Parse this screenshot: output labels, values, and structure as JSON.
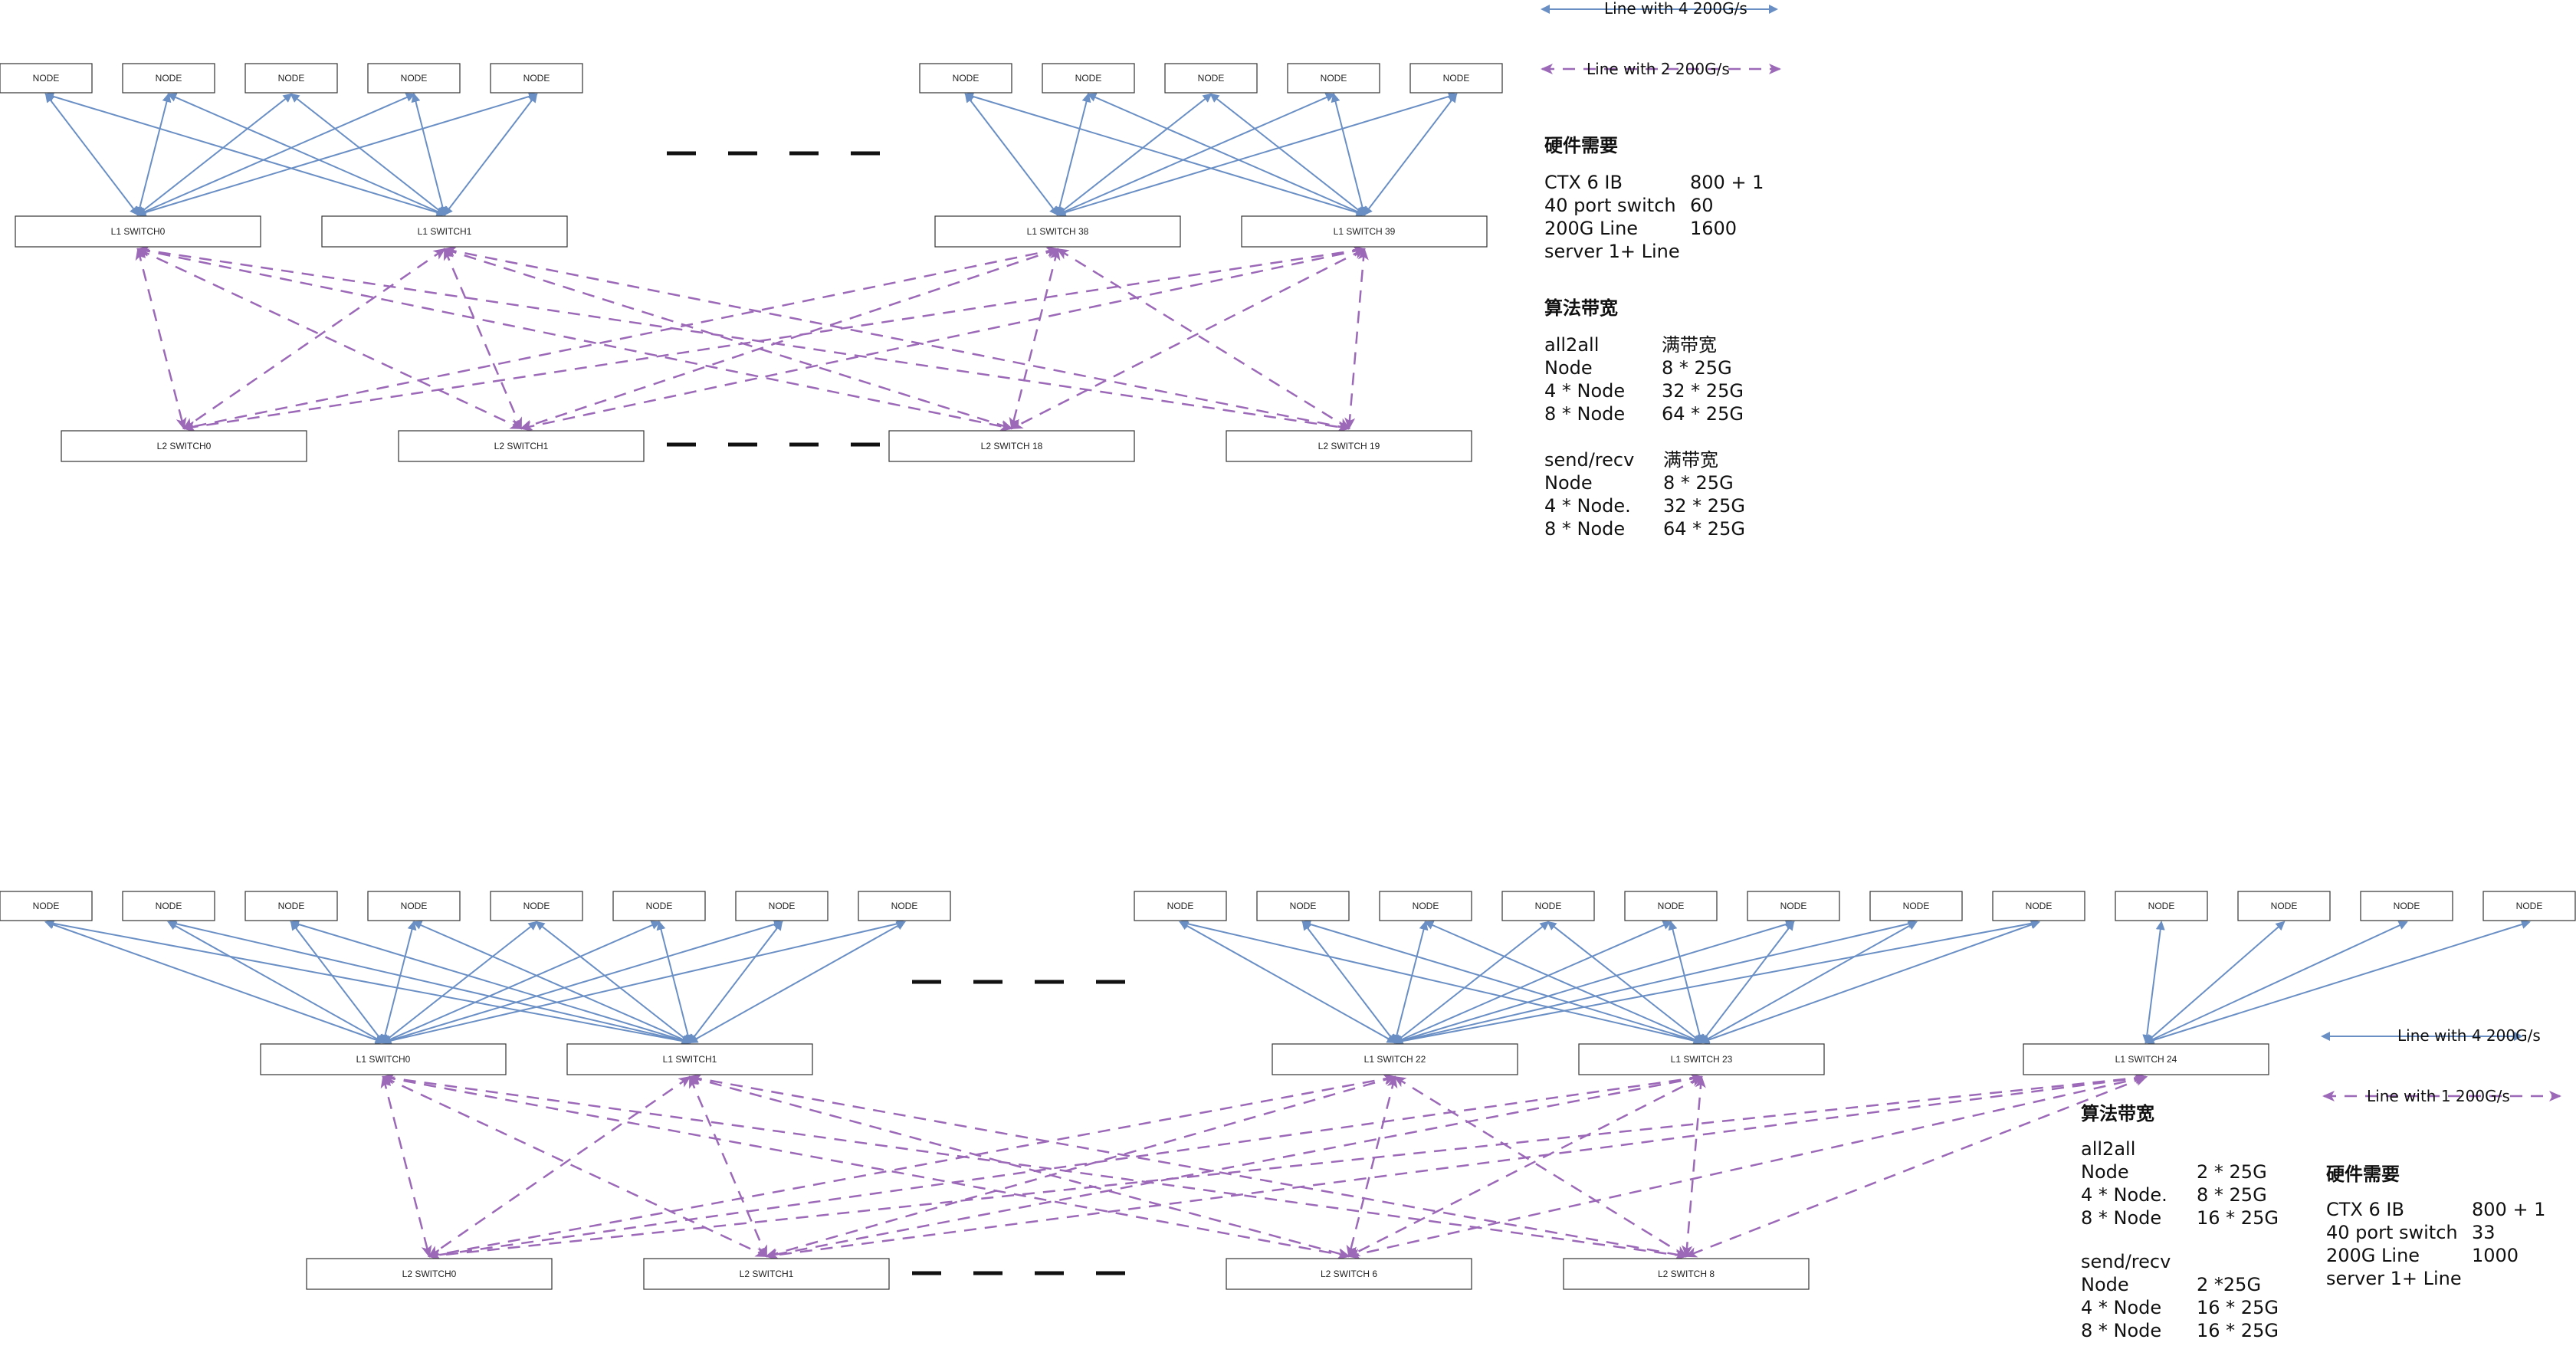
{
  "colors": {
    "blue": "#6a8fc5",
    "purple": "#9b69b7",
    "box_border": "#333333",
    "ellipsis": "#111111"
  },
  "labels": {
    "node": "NODE",
    "top_l1": [
      "L1 SWITCH0",
      "L1 SWITCH1",
      "L1 SWITCH 38",
      "L1 SWITCH 39"
    ],
    "top_l2": [
      "L2 SWITCH0",
      "L2 SWITCH1",
      "L2 SWITCH 18",
      "L2 SWITCH 19"
    ],
    "bot_l1": [
      "L1 SWITCH0",
      "L1 SWITCH1",
      "L1 SWITCH 22",
      "L1 SWITCH 23",
      "L1 SWITCH 24"
    ],
    "bot_l2": [
      "L2 SWITCH0",
      "L2 SWITCH1",
      "L2 SWITCH 6",
      "L2 SWITCH 8"
    ]
  },
  "legend_top": {
    "blue": "Line with 4 200G/s",
    "purple": "Line with 2 200G/s"
  },
  "legend_bottom": {
    "blue": "Line with 4 200G/s",
    "purple": "Line with 1 200G/s"
  },
  "panel_top": {
    "hw_title": "硬件需要",
    "hw_rows": [
      [
        "CTX 6 IB",
        "800 + 1"
      ],
      [
        "40 port switch",
        "60"
      ],
      [
        "200G Line",
        "1600"
      ],
      [
        "server 1+ Line",
        ""
      ]
    ],
    "algo_title": "算法带宽",
    "all2all_rows": [
      [
        "all2all",
        "满带宽"
      ],
      [
        "Node",
        "8 * 25G"
      ],
      [
        "4 * Node",
        "32 * 25G"
      ],
      [
        "8 * Node",
        "64 * 25G"
      ]
    ],
    "sendrecv_rows": [
      [
        "send/recv",
        "满带宽"
      ],
      [
        "Node",
        "8 * 25G"
      ],
      [
        "4 * Node.",
        "32 * 25G"
      ],
      [
        "8 * Node",
        "64 * 25G"
      ]
    ]
  },
  "panel_bottom": {
    "algo_title": "算法带宽",
    "all2all_rows": [
      [
        "all2all",
        ""
      ],
      [
        "Node",
        "2 * 25G"
      ],
      [
        "4 * Node.",
        "8 * 25G"
      ],
      [
        "8 * Node",
        "16 * 25G"
      ]
    ],
    "sendrecv_rows": [
      [
        "send/recv",
        ""
      ],
      [
        "Node",
        "2 *25G"
      ],
      [
        "4 * Node",
        "16 * 25G"
      ],
      [
        "8 * Node",
        "16 * 25G"
      ]
    ],
    "hw_title": "硬件需要",
    "hw_rows": [
      [
        "CTX 6 IB",
        "800 + 1"
      ],
      [
        "40 port switch",
        "33"
      ],
      [
        "200G Line",
        "1000"
      ],
      [
        "server 1+ Line",
        ""
      ]
    ]
  }
}
